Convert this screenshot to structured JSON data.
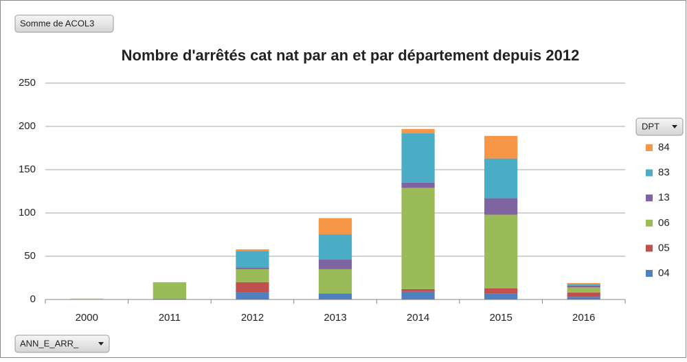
{
  "chart_data": {
    "type": "stacked_bar",
    "title": "Nombre d'arrêtés cat nat par an et par département depuis 2012",
    "value_field": "Somme de ACOL3",
    "legend_field": "DPT",
    "axis_field": "ANN_E_ARR_",
    "categories": [
      "2000",
      "2011",
      "2012",
      "2013",
      "2014",
      "2015",
      "2016"
    ],
    "series": [
      {
        "name": "04",
        "color": "#4f7fbe",
        "values": [
          0,
          1,
          8,
          7,
          9,
          7,
          3
        ]
      },
      {
        "name": "05",
        "color": "#c0504d",
        "values": [
          0,
          0,
          12,
          0,
          3,
          6,
          5
        ]
      },
      {
        "name": "06",
        "color": "#9bbb59",
        "values": [
          1,
          19,
          15,
          28,
          117,
          85,
          6
        ]
      },
      {
        "name": "13",
        "color": "#8064a2",
        "values": [
          0,
          0,
          2,
          11,
          6,
          19,
          2
        ]
      },
      {
        "name": "83",
        "color": "#4bacc6",
        "values": [
          0,
          0,
          19,
          29,
          57,
          46,
          2
        ]
      },
      {
        "name": "84",
        "color": "#f79646",
        "values": [
          0,
          0,
          2,
          19,
          5,
          26,
          1
        ]
      }
    ],
    "ylim": [
      0,
      250
    ],
    "yticks": [
      0,
      50,
      100,
      150,
      200,
      250
    ],
    "grid": true,
    "legend": "right"
  }
}
